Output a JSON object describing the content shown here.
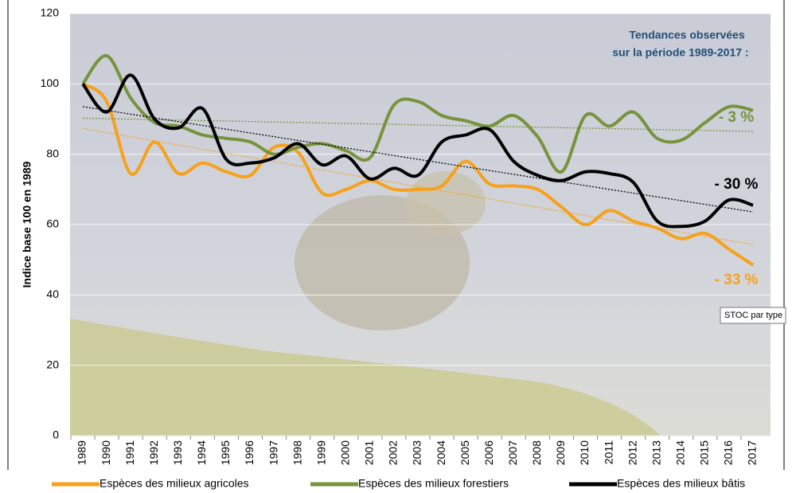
{
  "chart_data": {
    "type": "line",
    "ylabel": "Indice  base 100 en 1989",
    "annotation": [
      "Tendances observées",
      "sur la période 1989-2017 :"
    ],
    "tooltip": "STOC par type",
    "categories": [
      "1989",
      "1990",
      "1991",
      "1992",
      "1993",
      "1994",
      "1995",
      "1996",
      "1997",
      "1998",
      "1999",
      "2000",
      "2001",
      "2002",
      "2003",
      "2004",
      "2005",
      "2006",
      "2007",
      "2008",
      "2009",
      "2010",
      "2011",
      "2012",
      "2013",
      "2014",
      "2015",
      "2016",
      "2017"
    ],
    "ylim": [
      0,
      120
    ],
    "yticks": [
      0,
      20,
      40,
      60,
      80,
      100,
      120
    ],
    "grid": true,
    "trendlines": true,
    "legend": "bottom",
    "series": [
      {
        "name": "Espèces des milieux agricoles",
        "color": "#f7a11a",
        "trend_label": "- 33 %",
        "values": [
          100,
          95,
          74.5,
          83.5,
          74.5,
          77.5,
          75,
          74,
          82,
          80.5,
          69,
          70,
          72.5,
          70,
          70,
          71,
          78,
          71.5,
          71,
          70,
          65,
          60,
          64,
          61,
          59,
          56,
          57.5,
          53,
          48.5
        ]
      },
      {
        "name": "Espèces des milieux forestiers",
        "color": "#77933c",
        "trend_label": "- 3 %",
        "values": [
          100,
          108,
          96,
          89,
          88,
          85.5,
          84.5,
          83.5,
          80,
          82,
          83,
          81,
          79,
          94,
          95,
          91,
          89.5,
          88,
          91,
          85,
          75,
          91,
          88,
          92,
          84.5,
          84,
          89,
          93.5,
          92.5
        ]
      },
      {
        "name": "Espèces des milieux bâtis",
        "color": "#000000",
        "trend_label": "- 30 %",
        "values": [
          100,
          92,
          102.5,
          90,
          87.5,
          93,
          78.5,
          77.5,
          79,
          83,
          77,
          79.5,
          73,
          76,
          74,
          83.5,
          85.5,
          87,
          78,
          74,
          72.5,
          75,
          74.5,
          72,
          61,
          59.5,
          61,
          67,
          65.5
        ]
      }
    ]
  }
}
